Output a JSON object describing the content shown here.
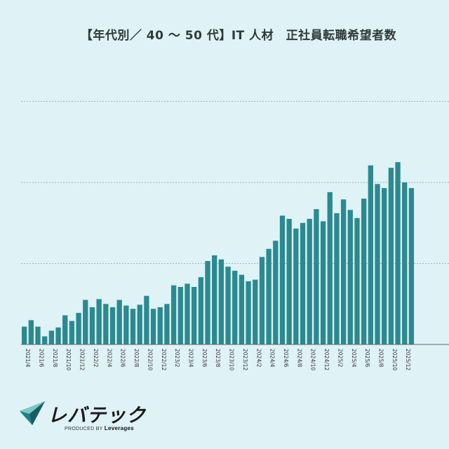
{
  "chart_data": {
    "type": "bar",
    "title": "【年代別／ 40 ～ 50 代】IT 人材　正社員転職希望者数",
    "xlabel": "",
    "ylabel": "",
    "color": "#2a8a8f",
    "gridlines": true,
    "ylim": [
      0,
      330
    ],
    "gridline_values": [
      100,
      200,
      300
    ],
    "categories": [
      "2021/4",
      "2021/5",
      "2021/6",
      "2021/7",
      "2021/8",
      "2021/9",
      "2021/10",
      "2021/11",
      "2021/12",
      "2022/1",
      "2022/2",
      "2022/3",
      "2022/4",
      "2022/5",
      "2022/6",
      "2022/7",
      "2022/8",
      "2022/9",
      "2022/10",
      "2022/11",
      "2022/12",
      "2023/1",
      "2023/2",
      "2023/3",
      "2023/4",
      "2023/5",
      "2023/6",
      "2023/7",
      "2023/8",
      "2023/9",
      "2023/10",
      "2023/11",
      "2023/12",
      "2024/1",
      "2024/2",
      "2024/3",
      "2024/4",
      "2024/5",
      "2024/6",
      "2024/7",
      "2024/8",
      "2024/9",
      "2024/10",
      "2024/11",
      "2024/12",
      "2025/1",
      "2025/2",
      "2025/3",
      "2025/4",
      "2025/5",
      "2025/6",
      "2025/7",
      "2025/8",
      "2025/9",
      "2025/10",
      "2025/11",
      "2025/12",
      "2026/1"
    ],
    "tick_labels": [
      "2021/4",
      "2021/6",
      "2021/8",
      "2021/10",
      "2021/12",
      "2022/2",
      "2022/4",
      "2022/6",
      "2022/8",
      "2022/10",
      "2022/12",
      "2023/2",
      "2023/4",
      "2023/6",
      "2023/8",
      "2023/10",
      "2023/12",
      "2024/2",
      "2024/4",
      "2024/6",
      "2024/8",
      "2024/10",
      "2024/12",
      "2025/2",
      "2025/4",
      "2025/6",
      "2025/8",
      "2025/10",
      "2025/12"
    ],
    "values": [
      22,
      30,
      22,
      10,
      17,
      21,
      36,
      29,
      39,
      55,
      46,
      56,
      50,
      46,
      55,
      48,
      44,
      49,
      60,
      44,
      46,
      50,
      73,
      71,
      75,
      71,
      83,
      103,
      110,
      105,
      96,
      91,
      86,
      78,
      80,
      108,
      118,
      128,
      159,
      155,
      143,
      150,
      155,
      167,
      152,
      188,
      162,
      179,
      166,
      156,
      180,
      221,
      198,
      193,
      218,
      225,
      200,
      193
    ]
  },
  "logo": {
    "name": "レバテック",
    "produced_by": "PRODUCED BY",
    "company": "Leverages"
  }
}
